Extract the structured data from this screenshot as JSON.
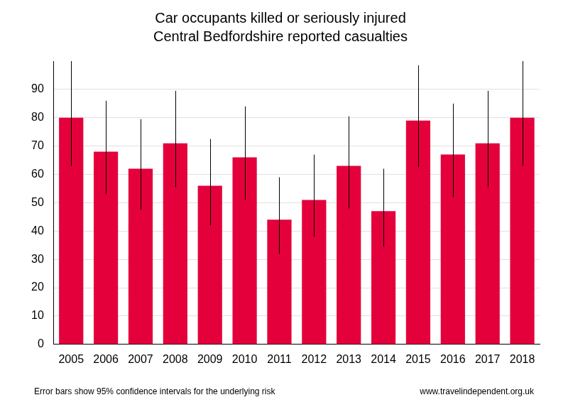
{
  "chart_data": {
    "type": "bar",
    "title": "Car occupants killed or seriously injured",
    "subtitle": "Central Bedfordshire reported casualties",
    "categories": [
      "2005",
      "2006",
      "2007",
      "2008",
      "2009",
      "2010",
      "2011",
      "2012",
      "2013",
      "2014",
      "2015",
      "2016",
      "2017",
      "2018"
    ],
    "values": [
      80,
      68,
      62,
      71,
      56,
      66,
      44,
      51,
      63,
      47,
      79,
      67,
      71,
      80
    ],
    "error_low": [
      63,
      53,
      47.5,
      55.5,
      42,
      51,
      32,
      38,
      48,
      34.5,
      62.5,
      52,
      55.5,
      63
    ],
    "error_high": [
      100,
      86,
      79.5,
      89.5,
      72.5,
      84,
      59,
      67,
      80.5,
      62,
      98.5,
      85,
      89.5,
      100
    ],
    "color": "#e4003b",
    "ylim": [
      0,
      100
    ],
    "yticks": [
      0,
      10,
      20,
      30,
      40,
      50,
      60,
      70,
      80,
      90
    ],
    "grid": true,
    "annotations": [
      "Error bars show 95% confidence intervals for the underlying risk",
      "www.travelindependent.org.uk"
    ]
  }
}
